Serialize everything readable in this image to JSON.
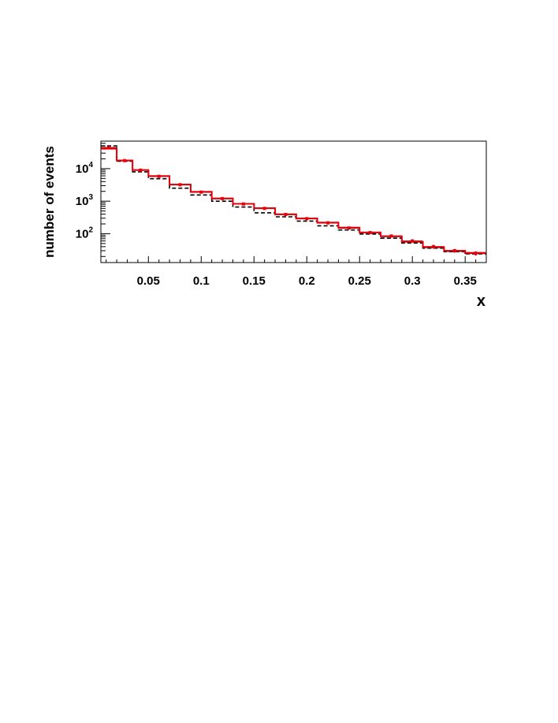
{
  "chart_data": {
    "type": "histogram",
    "xlabel": "x",
    "ylabel": "number of events",
    "xlim": [
      0.005,
      0.37
    ],
    "ylim": [
      13,
      70000
    ],
    "yscale": "log",
    "grid": false,
    "legend": "none",
    "x_ticks": [
      {
        "value": 0.05,
        "label": "0.05"
      },
      {
        "value": 0.1,
        "label": "0.1"
      },
      {
        "value": 0.15,
        "label": "0.15"
      },
      {
        "value": 0.2,
        "label": "0.2"
      },
      {
        "value": 0.25,
        "label": "0.25"
      },
      {
        "value": 0.3,
        "label": "0.3"
      },
      {
        "value": 0.35,
        "label": "0.35"
      }
    ],
    "y_ticks": [
      {
        "value": 100,
        "base": "10",
        "exp": "2"
      },
      {
        "value": 1000,
        "base": "10",
        "exp": "3"
      },
      {
        "value": 10000,
        "base": "10",
        "exp": "4"
      }
    ],
    "bin_edges": [
      0.005,
      0.02,
      0.035,
      0.05,
      0.07,
      0.09,
      0.11,
      0.13,
      0.15,
      0.17,
      0.19,
      0.21,
      0.23,
      0.25,
      0.27,
      0.29,
      0.31,
      0.33,
      0.35,
      0.37
    ],
    "series": [
      {
        "style": "black-solid-step",
        "color": "#000000",
        "values": [
          44000,
          17500,
          9000,
          5800,
          3200,
          1900,
          1200,
          820,
          600,
          390,
          290,
          215,
          150,
          108,
          82,
          56,
          38,
          29,
          25
        ]
      },
      {
        "style": "black-dashed-step",
        "color": "#000000",
        "values": [
          50000,
          17000,
          8000,
          4900,
          2500,
          1550,
          1000,
          660,
          440,
          330,
          245,
          175,
          130,
          98,
          73,
          52,
          36,
          28,
          24
        ]
      },
      {
        "style": "red-step-with-error-bars",
        "color": "#e8000b",
        "values": [
          41000,
          17800,
          9100,
          5900,
          3250,
          1950,
          1220,
          830,
          610,
          395,
          295,
          220,
          155,
          110,
          84,
          57,
          39,
          30,
          26
        ],
        "points": [
          44000,
          17600,
          9000,
          5800,
          3200,
          1900,
          1200,
          820,
          600,
          390,
          290,
          215,
          150,
          108,
          85,
          60,
          40,
          30,
          25
        ],
        "errors": [
          1100,
          500,
          300,
          220,
          150,
          100,
          70,
          50,
          35,
          25,
          20,
          16,
          12,
          9,
          8,
          7,
          5,
          4,
          4
        ]
      }
    ]
  }
}
